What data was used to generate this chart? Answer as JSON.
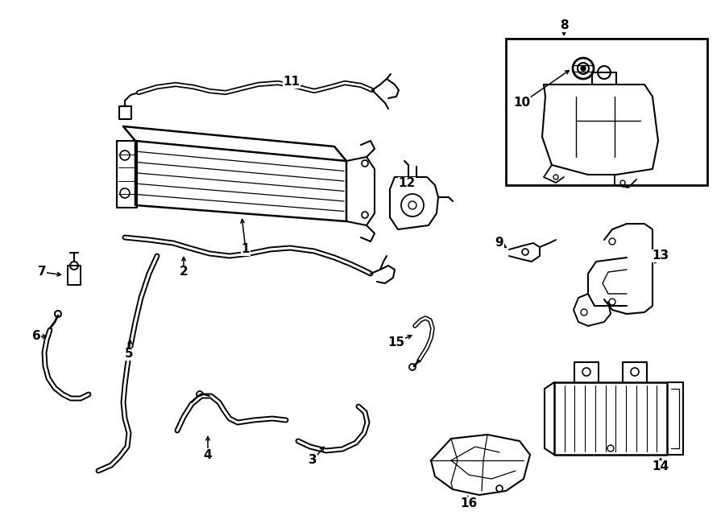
{
  "bg_color": "#ffffff",
  "line_color": "#000000",
  "figsize": [
    9.0,
    6.61
  ],
  "dpi": 100
}
